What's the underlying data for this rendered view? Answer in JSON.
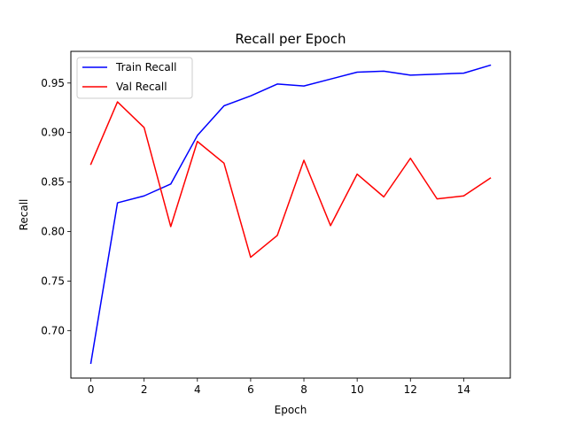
{
  "chart_data": {
    "type": "line",
    "title": "Recall per Epoch",
    "xlabel": "Epoch",
    "ylabel": "Recall",
    "x": [
      0,
      1,
      2,
      3,
      4,
      5,
      6,
      7,
      8,
      9,
      10,
      11,
      12,
      13,
      14,
      15
    ],
    "xlim": [
      -0.75,
      15.75
    ],
    "ylim": [
      0.652,
      0.982
    ],
    "xticks": [
      0,
      2,
      4,
      6,
      8,
      10,
      12,
      14
    ],
    "yticks": [
      0.7,
      0.75,
      0.8,
      0.85,
      0.9,
      0.95
    ],
    "xtick_labels": [
      "0",
      "2",
      "4",
      "6",
      "8",
      "10",
      "12",
      "14"
    ],
    "ytick_labels": [
      "0.70",
      "0.75",
      "0.80",
      "0.85",
      "0.90",
      "0.95"
    ],
    "grid": false,
    "legend": "top-left",
    "series": [
      {
        "name": "Train Recall",
        "color": "#0000ff",
        "values": [
          0.667,
          0.829,
          0.836,
          0.848,
          0.897,
          0.927,
          0.937,
          0.949,
          0.947,
          0.954,
          0.961,
          0.962,
          0.958,
          0.959,
          0.96,
          0.968
        ]
      },
      {
        "name": "Val Recall",
        "color": "#ff0000",
        "values": [
          0.868,
          0.931,
          0.905,
          0.805,
          0.891,
          0.869,
          0.774,
          0.796,
          0.872,
          0.806,
          0.858,
          0.835,
          0.874,
          0.833,
          0.836,
          0.854
        ]
      }
    ]
  }
}
